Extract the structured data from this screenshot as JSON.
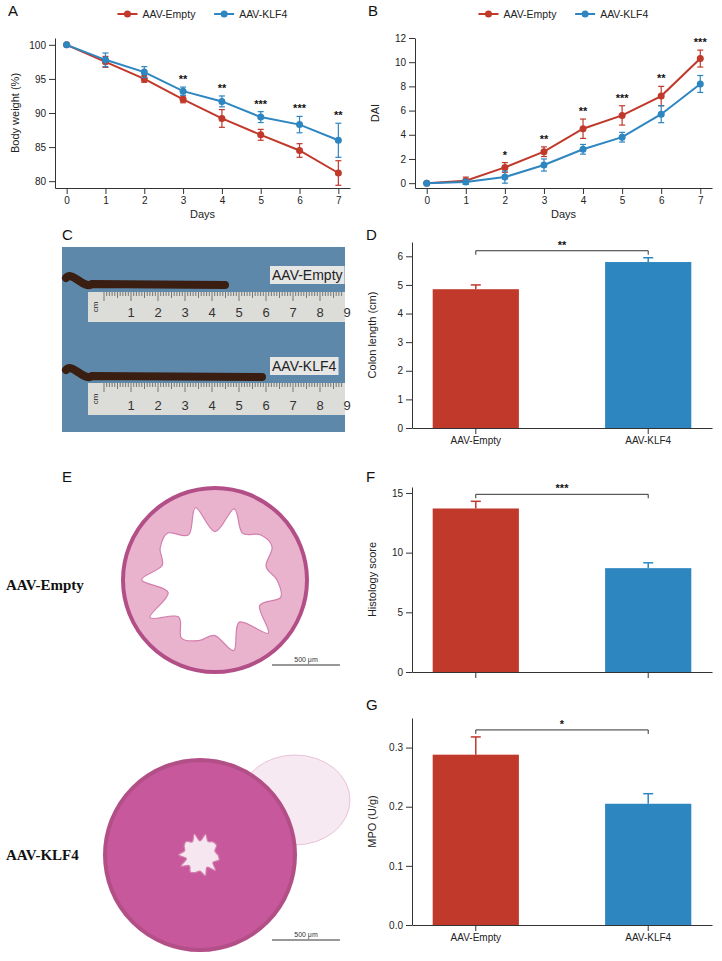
{
  "chart_data": [
    {
      "panel": "A",
      "type": "line",
      "x": [
        0,
        1,
        2,
        3,
        4,
        5,
        6,
        7
      ],
      "xlim": [
        -0.3,
        7.3
      ],
      "xticks": [
        0,
        1,
        2,
        3,
        4,
        5,
        6,
        7
      ],
      "x_label": "Days",
      "y_label": "Body weight (%)",
      "ylim": [
        79,
        101
      ],
      "yticks": [
        80,
        85,
        90,
        95,
        100
      ],
      "legend": "top",
      "series": [
        {
          "name": "AAV-Empty",
          "color": "#c0392b",
          "marker": "circle",
          "values": [
            100,
            97.5,
            95,
            92,
            89.2,
            86.8,
            84.5,
            81.2
          ],
          "error": [
            0,
            0.8,
            0.5,
            0.5,
            1.3,
            0.8,
            1.0,
            1.8
          ]
        },
        {
          "name": "AAV-KLF4",
          "color": "#2e86c1",
          "marker": "circle",
          "values": [
            100,
            97.8,
            96,
            93.2,
            91.7,
            89.4,
            88.3,
            86
          ],
          "error": [
            0,
            1.0,
            0.8,
            0.6,
            0.8,
            0.8,
            1.2,
            2.5
          ]
        }
      ],
      "annotations": [
        null,
        null,
        null,
        "**",
        "**",
        "***",
        "***",
        "**"
      ]
    },
    {
      "panel": "B",
      "type": "line",
      "x": [
        0,
        1,
        2,
        3,
        4,
        5,
        6,
        7
      ],
      "xlim": [
        -0.3,
        7.3
      ],
      "xticks": [
        0,
        1,
        2,
        3,
        4,
        5,
        6,
        7
      ],
      "x_label": "Days",
      "y_label": "DAI",
      "ylim": [
        -0.4,
        12
      ],
      "yticks": [
        0,
        2,
        4,
        6,
        8,
        10,
        12
      ],
      "legend": "top",
      "series": [
        {
          "name": "AAV-Empty",
          "color": "#c0392b",
          "marker": "circle",
          "values": [
            0,
            0.2,
            1.3,
            2.6,
            4.5,
            5.6,
            7.2,
            10.3
          ],
          "error": [
            0,
            0.3,
            0.4,
            0.4,
            0.8,
            0.8,
            0.8,
            0.7
          ]
        },
        {
          "name": "AAV-KLF4",
          "color": "#2e86c1",
          "marker": "circle",
          "values": [
            0,
            0.1,
            0.5,
            1.5,
            2.8,
            3.8,
            5.7,
            8.2
          ],
          "error": [
            0,
            0.2,
            0.5,
            0.5,
            0.4,
            0.4,
            0.7,
            0.7
          ]
        }
      ],
      "annotations": [
        null,
        null,
        "*",
        "**",
        "**",
        "***",
        "**",
        "***"
      ]
    },
    {
      "panel": "D",
      "type": "bar",
      "categories": [
        "AAV-Empty",
        "AAV-KLF4"
      ],
      "values": [
        4.85,
        5.8
      ],
      "error": [
        0.15,
        0.15
      ],
      "colors": [
        "#c0392b",
        "#2e86c1"
      ],
      "y_label": "Colon length (cm)",
      "ylim": [
        0,
        6.5
      ],
      "yticks": [
        0,
        1,
        2,
        3,
        4,
        5,
        6
      ],
      "annotation": "**"
    },
    {
      "panel": "F",
      "type": "bar",
      "categories": [
        null,
        null
      ],
      "values": [
        13.7,
        8.7
      ],
      "error": [
        0.6,
        0.45
      ],
      "colors": [
        "#c0392b",
        "#2e86c1"
      ],
      "y_label": "Histology score",
      "ylim": [
        0,
        15.5
      ],
      "yticks": [
        0,
        5,
        10,
        15
      ],
      "annotation": "***"
    },
    {
      "panel": "G",
      "type": "bar",
      "categories": [
        "AAV-Empty",
        "AAV-KLF4"
      ],
      "values": [
        0.288,
        0.205
      ],
      "error": [
        0.03,
        0.017
      ],
      "colors": [
        "#c0392b",
        "#2e86c1"
      ],
      "y_label": "MPO (U/g)",
      "ylim": [
        0,
        0.35
      ],
      "yticks": [
        {
          "value": 0,
          "label": "0.0"
        },
        0.1,
        0.2,
        0.3
      ],
      "annotation": "*"
    }
  ],
  "images": [
    {
      "panel": "C",
      "labels": [
        "AAV-Empty",
        "AAV-KLF4"
      ],
      "ruler_ticks": [
        1,
        2,
        3,
        4,
        5,
        6,
        7,
        8,
        9
      ],
      "ruler_unit": "cm"
    },
    {
      "panel": "E",
      "labels": [
        "AAV-Empty",
        "AAV-KLF4"
      ],
      "scale_bar": "500 μm"
    }
  ]
}
